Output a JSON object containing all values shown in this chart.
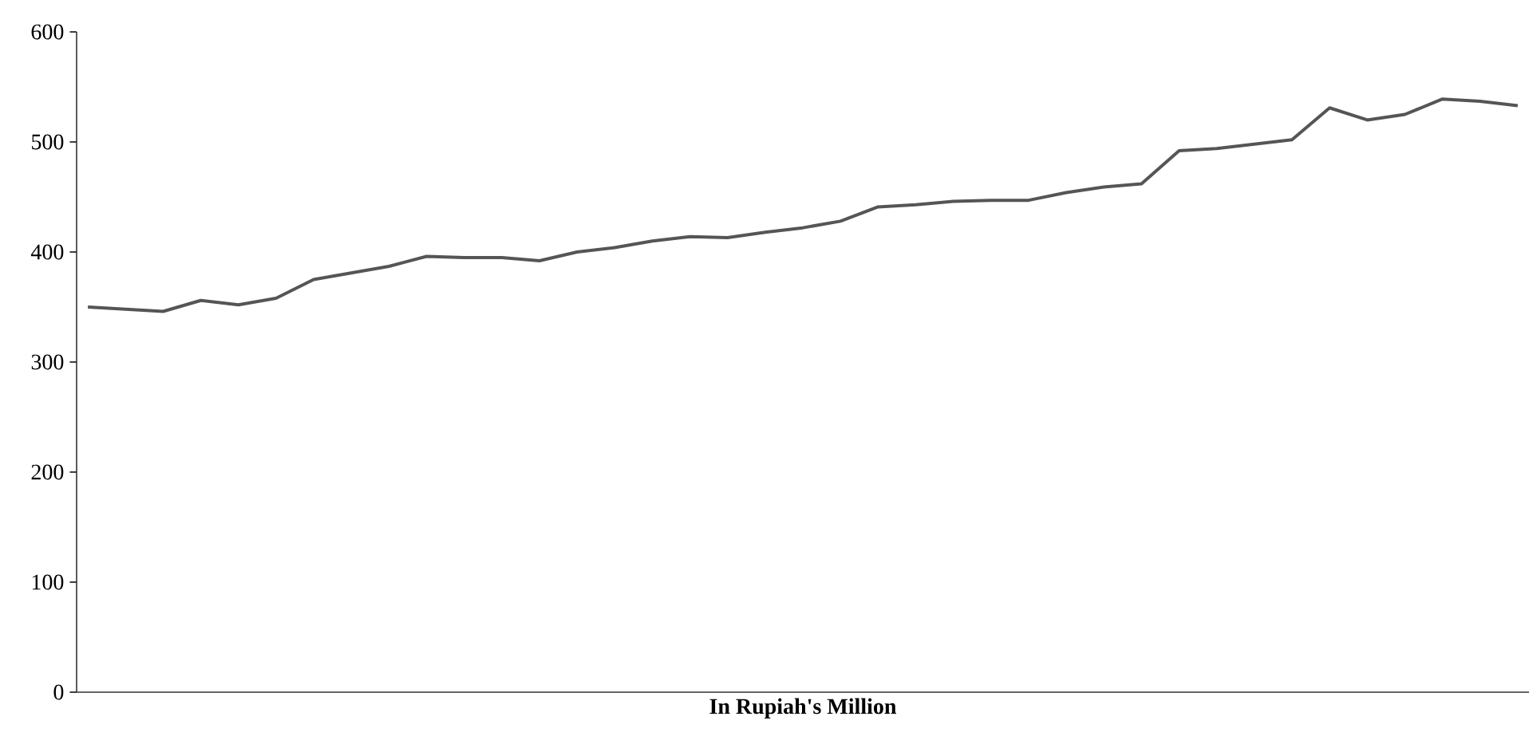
{
  "chart_data": {
    "type": "line",
    "xlabel": "**In Rupiah's Million**",
    "categories": [
      null,
      null,
      null,
      null,
      null,
      null,
      null,
      null,
      null,
      null,
      null,
      null,
      null,
      null,
      null,
      null,
      null,
      null,
      null,
      null,
      null,
      null,
      null,
      null,
      null,
      null,
      null,
      null,
      null,
      null,
      null,
      null,
      null,
      null,
      null,
      null,
      null,
      null,
      null
    ],
    "series": [
      {
        "color": "#555555",
        "values": [
          350,
          348,
          346,
          356,
          352,
          358,
          375,
          381,
          387,
          396,
          395,
          395,
          392,
          400,
          404,
          410,
          414,
          413,
          418,
          422,
          428,
          441,
          443,
          446,
          447,
          447,
          454,
          459,
          462,
          492,
          494,
          498,
          502,
          531,
          520,
          525,
          539,
          537,
          533
        ]
      }
    ],
    "ylim": [
      0,
      600
    ],
    "yticks": [
      0,
      100,
      200,
      300,
      400,
      500,
      600
    ],
    "grid": false,
    "marker": "none",
    "line_style": "solid"
  }
}
